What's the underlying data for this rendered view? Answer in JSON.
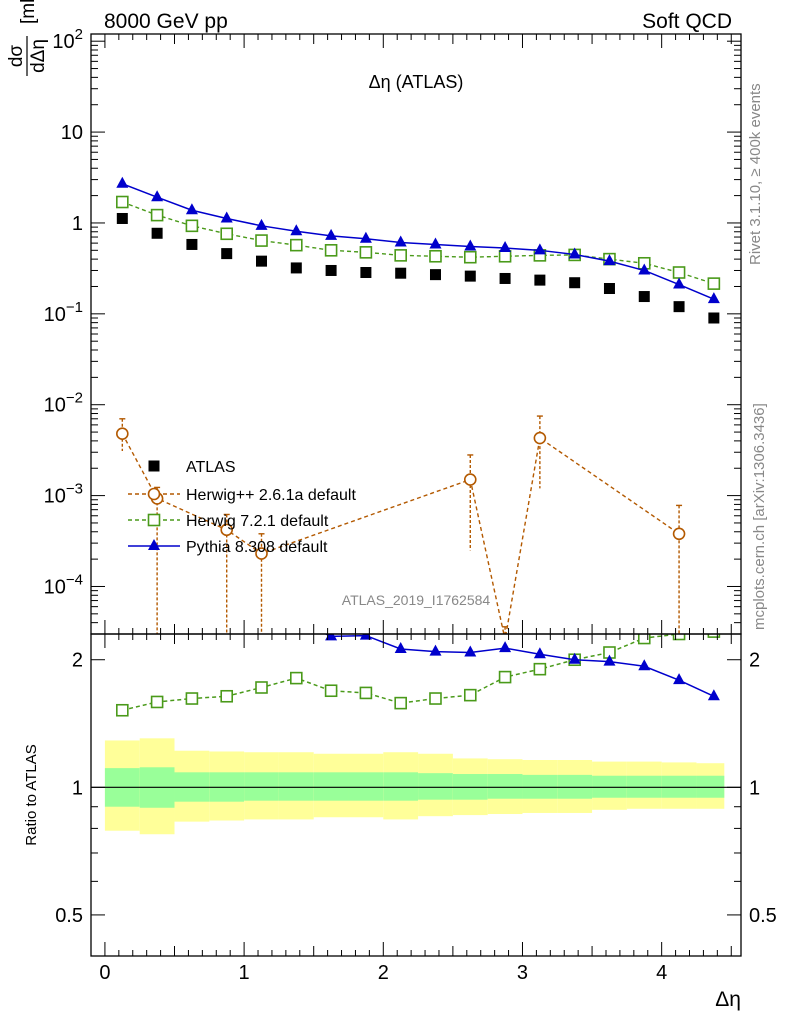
{
  "header": {
    "left": "8000 GeV pp",
    "right": "Soft QCD"
  },
  "side_labels": {
    "rivet": "Rivet 3.1.10, ≥ 400k events",
    "mcplots": "mcplots.cern.ch [arXiv:1306.3436]"
  },
  "watermark": "ATLAS_2019_I1762584",
  "colors": {
    "atlas": "#000000",
    "herwigpp": "#b35900",
    "herwig7": "#4a9a1a",
    "pythia": "#0000cc",
    "band_outer": "#ffff99",
    "band_inner": "#99ff99"
  },
  "chart_data": [
    {
      "type": "scatter",
      "panel": "main",
      "title": "Δη (ATLAS)",
      "ylabel": "dσ/dΔη [mb]",
      "yscale": "log",
      "ylim": [
        3e-05,
        120
      ],
      "xlim": [
        -0.1,
        4.57
      ],
      "y_ticks": [
        {
          "value": 100,
          "label": "10^2"
        },
        {
          "value": 10,
          "label": "10"
        },
        {
          "value": 1,
          "label": "1"
        },
        {
          "value": 0.1,
          "label": "10^−1"
        },
        {
          "value": 0.01,
          "label": "10^−2"
        },
        {
          "value": 0.001,
          "label": "10^−3"
        },
        {
          "value": 0.0001,
          "label": "10^−4"
        }
      ],
      "legend": {
        "placement": "center-left",
        "entries": [
          {
            "key": "atlas",
            "label": "ATLAS"
          },
          {
            "key": "herwigpp",
            "label": "Herwig++ 2.6.1a default"
          },
          {
            "key": "herwig7",
            "label": "Herwig 7.2.1 default"
          },
          {
            "key": "pythia",
            "label": "Pythia 8.308 default"
          }
        ]
      },
      "series": [
        {
          "key": "atlas",
          "name": "ATLAS",
          "style": "marker-square-filled",
          "x": [
            0.125,
            0.375,
            0.625,
            0.875,
            1.125,
            1.375,
            1.625,
            1.875,
            2.125,
            2.375,
            2.625,
            2.875,
            3.125,
            3.375,
            3.625,
            3.875,
            4.125,
            4.375
          ],
          "y": [
            1.12,
            0.77,
            0.58,
            0.46,
            0.38,
            0.32,
            0.3,
            0.285,
            0.28,
            0.27,
            0.26,
            0.245,
            0.235,
            0.22,
            0.19,
            0.155,
            0.12,
            0.09
          ]
        },
        {
          "key": "herwigpp",
          "name": "Herwig++ 2.6.1a default",
          "style": "marker-circle-open-dashed",
          "x": [
            0.125,
            0.375,
            0.875,
            1.125,
            2.625,
            2.875,
            3.125,
            4.125
          ],
          "y": [
            0.0048,
            0.00093,
            0.00042,
            0.00023,
            0.0015,
            2.6e-05,
            0.0043,
            0.00038
          ],
          "err_low": [
            0.0017,
            0.0009,
            0.0004,
            0.0002,
            0.00125,
            1e-05,
            0.0031,
            0.00035
          ],
          "err_high": [
            0.0022,
            0.0003,
            0.0002,
            0.00015,
            0.0013,
            1e-05,
            0.0032,
            0.0004
          ]
        },
        {
          "key": "herwig7",
          "name": "Herwig 7.2.1 default",
          "style": "marker-square-open-dashed",
          "x": [
            0.125,
            0.375,
            0.625,
            0.875,
            1.125,
            1.375,
            1.625,
            1.875,
            2.125,
            2.375,
            2.625,
            2.875,
            3.125,
            3.375,
            3.625,
            3.875,
            4.125,
            4.375
          ],
          "y": [
            1.7,
            1.22,
            0.93,
            0.76,
            0.64,
            0.57,
            0.5,
            0.475,
            0.44,
            0.43,
            0.42,
            0.43,
            0.44,
            0.445,
            0.4,
            0.36,
            0.285,
            0.215
          ]
        },
        {
          "key": "pythia",
          "name": "Pythia 8.308 default",
          "style": "marker-triangle-filled-line",
          "x": [
            0.125,
            0.375,
            0.625,
            0.875,
            1.125,
            1.375,
            1.625,
            1.875,
            2.125,
            2.375,
            2.625,
            2.875,
            3.125,
            3.375,
            3.625,
            3.875,
            4.125,
            4.375
          ],
          "y": [
            2.7,
            1.92,
            1.38,
            1.12,
            0.93,
            0.81,
            0.72,
            0.67,
            0.61,
            0.58,
            0.55,
            0.53,
            0.5,
            0.45,
            0.38,
            0.3,
            0.21,
            0.145
          ]
        }
      ]
    },
    {
      "type": "line",
      "panel": "ratio",
      "ylabel": "Ratio to ATLAS",
      "xlabel": "Δη",
      "yscale": "log",
      "ylim": [
        0.4,
        2.3
      ],
      "xlim": [
        -0.1,
        4.57
      ],
      "x_ticks": [
        0,
        1,
        2,
        3,
        4
      ],
      "y_ticks": [
        0.5,
        1,
        2
      ],
      "bins": [
        [
          0,
          0.25
        ],
        [
          0.25,
          0.5
        ],
        [
          0.5,
          0.75
        ],
        [
          0.75,
          1.0
        ],
        [
          1.0,
          1.25
        ],
        [
          1.25,
          1.5
        ],
        [
          1.5,
          1.75
        ],
        [
          1.75,
          2.0
        ],
        [
          2.0,
          2.25
        ],
        [
          2.25,
          2.5
        ],
        [
          2.5,
          2.75
        ],
        [
          2.75,
          3.0
        ],
        [
          3.0,
          3.25
        ],
        [
          3.25,
          3.5
        ],
        [
          3.5,
          3.75
        ],
        [
          3.75,
          4.0
        ],
        [
          4.0,
          4.25
        ],
        [
          4.25,
          4.45
        ]
      ],
      "band_outer": {
        "low": [
          0.79,
          0.775,
          0.83,
          0.835,
          0.84,
          0.84,
          0.85,
          0.85,
          0.84,
          0.855,
          0.86,
          0.865,
          0.87,
          0.87,
          0.885,
          0.89,
          0.89,
          0.89
        ],
        "high": [
          1.29,
          1.305,
          1.22,
          1.215,
          1.21,
          1.21,
          1.2,
          1.2,
          1.21,
          1.2,
          1.17,
          1.165,
          1.16,
          1.16,
          1.15,
          1.15,
          1.145,
          1.14
        ]
      },
      "band_inner": {
        "low": [
          0.9,
          0.895,
          0.925,
          0.925,
          0.93,
          0.93,
          0.93,
          0.93,
          0.93,
          0.935,
          0.935,
          0.94,
          0.94,
          0.94,
          0.945,
          0.945,
          0.945,
          0.945
        ],
        "high": [
          1.11,
          1.115,
          1.085,
          1.085,
          1.085,
          1.085,
          1.085,
          1.085,
          1.085,
          1.08,
          1.075,
          1.075,
          1.07,
          1.07,
          1.065,
          1.065,
          1.065,
          1.065
        ]
      },
      "series": [
        {
          "key": "herwig7",
          "name": "Herwig 7.2.1 default",
          "x": [
            0.125,
            0.375,
            0.625,
            0.875,
            1.125,
            1.375,
            1.625,
            1.875,
            2.125,
            2.375,
            2.625,
            2.875,
            3.125,
            3.375,
            3.625,
            3.875,
            4.125,
            4.375
          ],
          "y": [
            1.52,
            1.59,
            1.62,
            1.64,
            1.72,
            1.81,
            1.69,
            1.67,
            1.58,
            1.62,
            1.65,
            1.82,
            1.9,
            2.0,
            2.08,
            2.25,
            2.3,
            2.33
          ]
        },
        {
          "key": "pythia",
          "name": "Pythia 8.308 default",
          "x": [
            0.125,
            0.375,
            0.625,
            0.875,
            1.125,
            1.375,
            1.625,
            1.875,
            2.125,
            2.375,
            2.625,
            2.875,
            3.125,
            3.375,
            3.625,
            3.875,
            4.125,
            4.375
          ],
          "y": [
            2.41,
            2.49,
            2.45,
            2.45,
            2.49,
            2.48,
            2.27,
            2.28,
            2.12,
            2.09,
            2.08,
            2.13,
            2.06,
            2.0,
            1.98,
            1.93,
            1.79,
            1.64
          ]
        }
      ]
    }
  ]
}
